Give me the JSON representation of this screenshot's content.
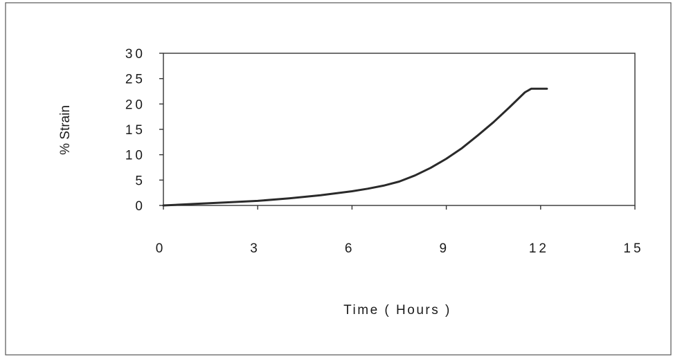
{
  "chart_data": {
    "type": "line",
    "xlabel": "Time ( Hours )",
    "ylabel": "% Strain",
    "xlim": [
      0,
      15
    ],
    "ylim": [
      0,
      30
    ],
    "x_ticks": [
      "0",
      "3",
      "6",
      "9",
      "12",
      "15"
    ],
    "y_ticks": [
      "0",
      "5",
      "10",
      "15",
      "20",
      "25",
      "30"
    ],
    "grid": false,
    "legend": "none",
    "series": [
      {
        "color": "#2a2a2a",
        "x": [
          0,
          1,
          2,
          3,
          4,
          5,
          6,
          6.5,
          7,
          7.5,
          8,
          8.5,
          9,
          9.5,
          10,
          10.5,
          11,
          11.5,
          11.7,
          12.2
        ],
        "y": [
          0,
          0.3,
          0.6,
          0.9,
          1.4,
          2.0,
          2.8,
          3.3,
          3.9,
          4.7,
          5.9,
          7.4,
          9.2,
          11.3,
          13.8,
          16.4,
          19.3,
          22.3,
          23.0,
          23.0
        ]
      }
    ]
  }
}
